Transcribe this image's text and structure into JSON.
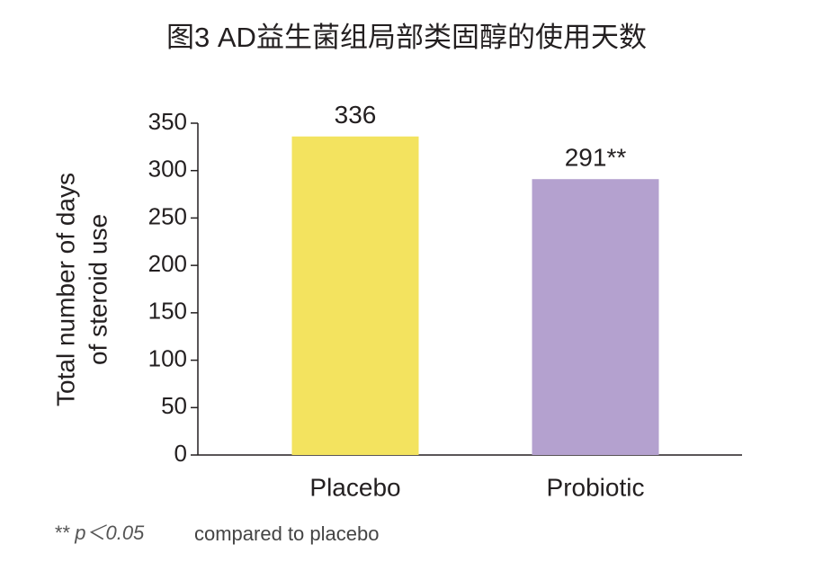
{
  "chart_data": {
    "type": "bar",
    "title": "图3 AD益生菌组局部类固醇的使用天数",
    "y_label": [
      "Total number of days",
      "of steroid use"
    ],
    "categories": [
      "Placebo",
      "Probiotic"
    ],
    "values": [
      336,
      291
    ],
    "value_labels": [
      "336",
      "291**"
    ],
    "colors": [
      "#f3e35f",
      "#b4a1cf"
    ],
    "ylim": [
      0,
      350
    ],
    "yticks": [
      0,
      50,
      100,
      150,
      200,
      250,
      300,
      350
    ],
    "footnote_italic": "** p＜0.05",
    "footnote": "compared to placebo"
  }
}
